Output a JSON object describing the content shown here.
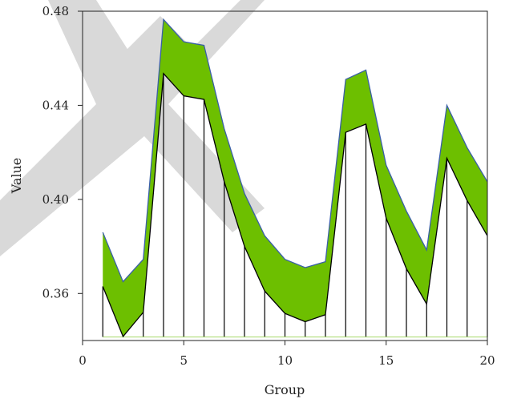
{
  "chart_data": {
    "type": "area",
    "xlabel": "Group",
    "ylabel": "Value",
    "xlim": [
      0,
      20
    ],
    "ylim": [
      0.34,
      0.48
    ],
    "x_ticks": [
      "0",
      "5",
      "10",
      "15",
      "20"
    ],
    "y_ticks": [
      "0.36",
      "0.40",
      "0.44",
      "0.48"
    ],
    "x_tick_values": [
      0,
      5,
      10,
      15,
      20
    ],
    "y_tick_values": [
      0.36,
      0.4,
      0.44,
      0.48
    ],
    "baseline": 0.3415,
    "grid": false,
    "x": [
      1,
      2,
      3,
      4,
      5,
      6,
      7,
      8,
      9,
      10,
      11,
      12,
      13,
      14,
      15,
      16,
      17,
      18,
      19,
      20
    ],
    "series": [
      {
        "role": "lower",
        "values": [
          0.363,
          0.3417,
          0.352,
          0.4535,
          0.444,
          0.4425,
          0.4075,
          0.38,
          0.361,
          0.3515,
          0.348,
          0.351,
          0.4285,
          0.432,
          0.392,
          0.3705,
          0.3555,
          0.4175,
          0.3995,
          0.3845
        ]
      },
      {
        "role": "upper",
        "values": [
          0.386,
          0.365,
          0.3745,
          0.4765,
          0.467,
          0.4655,
          0.43,
          0.4025,
          0.3845,
          0.3745,
          0.371,
          0.3735,
          0.451,
          0.455,
          0.4145,
          0.395,
          0.3785,
          0.44,
          0.422,
          0.4075
        ]
      }
    ],
    "colors": {
      "band_fill": "#6dbf00",
      "upper_line": "#3a5fa8",
      "lower_line": "#000000",
      "drop_lines": "#000000",
      "baseline_line": "#a6d96a",
      "axes": "#222222",
      "watermark": "#d9d9d9"
    }
  }
}
